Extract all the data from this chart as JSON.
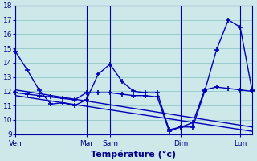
{
  "background_color": "#cce8e8",
  "grid_color": "#99cccc",
  "line_color": "#0000bb",
  "xlabel": "Température (°c)",
  "ylim": [
    9,
    18
  ],
  "yticks": [
    9,
    10,
    11,
    12,
    13,
    14,
    15,
    16,
    17,
    18
  ],
  "xlim": [
    0,
    20
  ],
  "day_ticks": [
    0,
    6,
    8,
    14,
    19
  ],
  "day_labels": [
    "Ven",
    "Mar",
    "Sam",
    "Dim",
    "Lun"
  ],
  "line1_x": [
    0,
    1,
    2,
    3,
    4,
    5,
    6,
    7,
    8,
    9,
    10,
    11,
    12,
    13,
    14,
    15,
    16,
    17,
    18,
    19,
    20
  ],
  "line1_y": [
    14.8,
    13.5,
    12.1,
    11.1,
    11.2,
    11.0,
    11.4,
    13.2,
    13.9,
    12.7,
    12.0,
    11.9,
    11.9,
    9.3,
    9.5,
    9.5,
    12.0,
    14.9,
    17.0,
    16.5,
    12.1
  ],
  "line2_x": [
    0,
    1,
    2,
    3,
    4,
    5,
    6,
    7,
    8,
    9,
    10,
    11,
    12,
    13,
    14,
    15,
    16,
    17,
    18,
    19,
    20
  ],
  "line2_y": [
    11.9,
    11.8,
    11.7,
    11.6,
    11.5,
    11.4,
    11.9,
    11.9,
    11.9,
    11.8,
    11.7,
    11.7,
    11.6,
    9.2,
    9.5,
    9.8,
    12.1,
    12.3,
    12.2,
    12.1,
    12.0
  ],
  "trend1_x": [
    0,
    20
  ],
  "trend1_y": [
    12.1,
    9.5
  ],
  "trend2_x": [
    0,
    20
  ],
  "trend2_y": [
    11.7,
    9.2
  ]
}
